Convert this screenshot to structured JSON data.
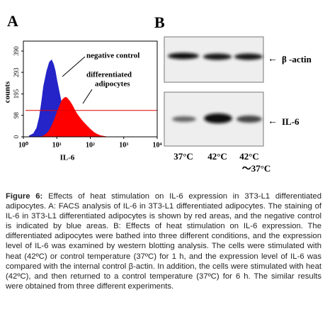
{
  "chart_data": {
    "type": "area",
    "panel_label": "A",
    "y_label": "counts",
    "x_label": "IL-6",
    "annotations": [
      "negative control",
      "differentiated",
      "adipocytes"
    ],
    "log_x": true,
    "xlim": [
      1,
      10000
    ],
    "ylim": [
      0,
      435
    ],
    "xticks": [
      {
        "value": 1,
        "label": "10⁰"
      },
      {
        "value": 10,
        "label": "10¹"
      },
      {
        "value": 100,
        "label": "10²"
      },
      {
        "value": 1000,
        "label": "10³"
      },
      {
        "value": 10000,
        "label": "10⁴"
      }
    ],
    "yticks": [
      0,
      98,
      195,
      293,
      390
    ],
    "x": [
      1.5,
      2,
      2.5,
      3,
      3.5,
      4,
      5,
      6,
      7,
      8,
      9,
      10,
      12,
      14,
      16,
      18,
      20,
      25,
      30,
      35,
      40,
      50,
      60,
      80,
      100,
      130,
      160,
      200,
      250,
      300,
      400
    ],
    "series": [
      {
        "color": "#2424c8",
        "values": [
          5,
          15,
          40,
          90,
          160,
          230,
          300,
          340,
          350,
          330,
          300,
          260,
          200,
          150,
          110,
          80,
          60,
          35,
          20,
          12,
          8,
          5,
          3,
          2,
          1,
          0,
          0,
          0,
          0,
          0,
          0
        ]
      },
      {
        "color": "#ff0000",
        "values": [
          0,
          0,
          0,
          0,
          2,
          5,
          15,
          30,
          50,
          70,
          90,
          110,
          140,
          165,
          175,
          180,
          178,
          160,
          140,
          120,
          105,
          85,
          70,
          50,
          35,
          20,
          12,
          6,
          3,
          1,
          0
        ]
      }
    ],
    "gate_line": {
      "y": 120,
      "color": "#dd0000"
    }
  },
  "panel_b": {
    "panel_label": "B",
    "bands": [
      "β -actin",
      "IL-6"
    ],
    "lanes": [
      "37°C",
      "42°C",
      "42°C",
      "～37°C"
    ]
  },
  "caption": {
    "label": "Figure 6:",
    "text": " Effects of heat stimulation on IL-6 expression in 3T3-L1 differentiated adipocytes. A: FACS analysis of IL-6 in 3T3-L1 differentiated adipocytes. The staining of IL-6 in 3T3-L1 differentiated adipocytes is shown by red areas, and the negative control is indicated by blue areas. B: Effects of heat stimulation on IL-6 expression. The differentiated adipocytes were bathed into three different conditions, and the expression level of IL-6 was examined by western blotting analysis. The cells were stimulated with heat (42ºC) or control temperature (37ºC) for 1 h, and the expression level of IL-6 was compared with the internal control β-actin. In addition, the cells were stimulated with heat (42ºC), and then returned to a control temperature (37ºC) for 6 h. The similar results were obtained from three different experiments."
  }
}
